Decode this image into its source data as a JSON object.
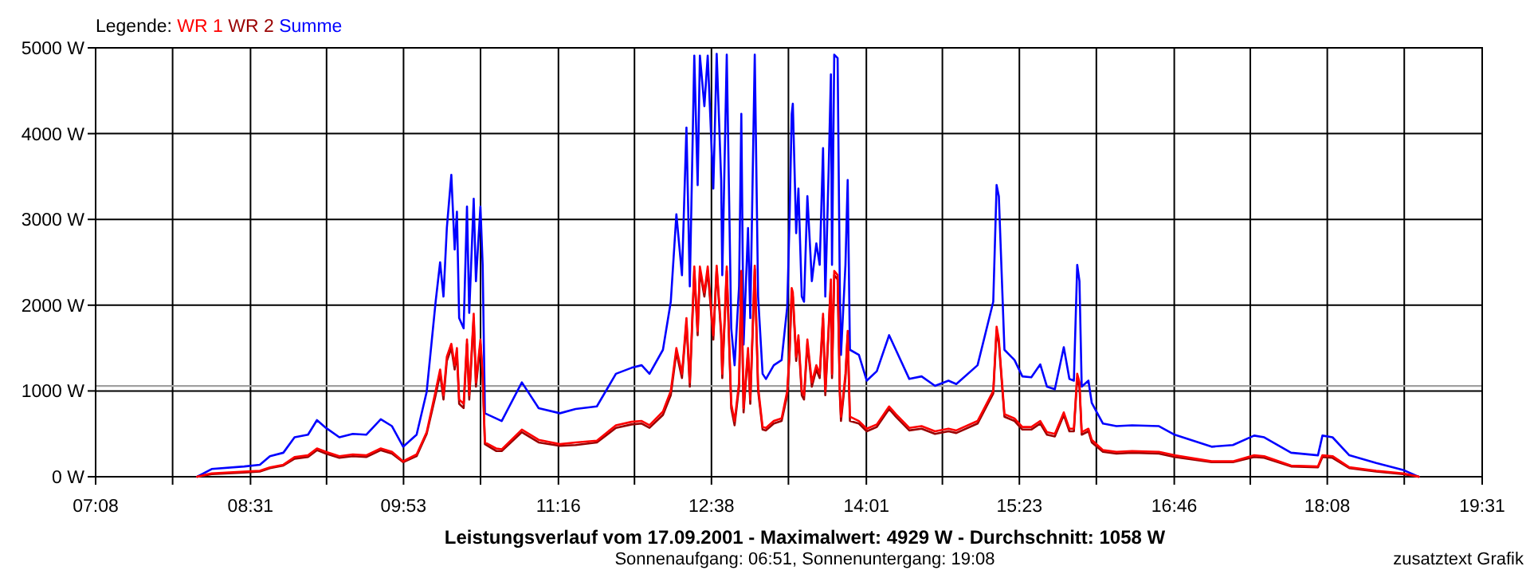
{
  "chart_data": {
    "type": "line",
    "title": "Leistungsverlauf vom 17.09.2001 - Maximalwert: 4929 W - Durchschnitt: 1058 W",
    "subtitle": "Sonnenaufgang: 06:51, Sonnenuntergang: 19:08",
    "annotations": [
      "zusatztext Grafik"
    ],
    "legend_title": "Legende:",
    "legend": "top left",
    "grid": true,
    "marker": "none",
    "line_style": "solid",
    "xlim": [
      7.1333,
      19.5167
    ],
    "xticks": [
      {
        "value": 7.1333,
        "label": "07:08"
      },
      {
        "value": 7.8208,
        "label": null
      },
      {
        "value": 8.5167,
        "label": "08:31"
      },
      {
        "value": 9.1958,
        "label": null
      },
      {
        "value": 9.8833,
        "label": "09:53"
      },
      {
        "value": 10.5708,
        "label": null
      },
      {
        "value": 11.2667,
        "label": "11:16"
      },
      {
        "value": 11.9458,
        "label": null
      },
      {
        "value": 12.6333,
        "label": "12:38"
      },
      {
        "value": 13.3208,
        "label": null
      },
      {
        "value": 14.0167,
        "label": "14:01"
      },
      {
        "value": 14.6958,
        "label": null
      },
      {
        "value": 15.3833,
        "label": "15:23"
      },
      {
        "value": 16.0708,
        "label": null
      },
      {
        "value": 16.7667,
        "label": "16:46"
      },
      {
        "value": 17.4458,
        "label": null
      },
      {
        "value": 18.1333,
        "label": "18:08"
      },
      {
        "value": 18.8208,
        "label": null
      },
      {
        "value": 19.5167,
        "label": "19:31"
      }
    ],
    "ylim": [
      0,
      5000
    ],
    "yticks": [
      {
        "value": 0,
        "label": "0 W"
      },
      {
        "value": 1000,
        "label": "1000 W"
      },
      {
        "value": 2000,
        "label": "2000 W"
      },
      {
        "value": 3000,
        "label": "3000 W"
      },
      {
        "value": 4000,
        "label": "4000 W"
      },
      {
        "value": 5000,
        "label": "5000 W"
      }
    ],
    "ref_lines": [
      {
        "axis": "y",
        "value": 1058,
        "color": "#a0a0a0"
      }
    ],
    "x": [
      8.04,
      8.17,
      8.46,
      8.6,
      8.69,
      8.81,
      8.91,
      9.03,
      9.11,
      9.19,
      9.31,
      9.43,
      9.55,
      9.68,
      9.78,
      9.88,
      10.0,
      10.09,
      10.17,
      10.21,
      10.24,
      10.27,
      10.31,
      10.34,
      10.36,
      10.38,
      10.42,
      10.45,
      10.47,
      10.51,
      10.53,
      10.57,
      10.59,
      10.61,
      10.71,
      10.76,
      10.94,
      11.09,
      11.28,
      11.42,
      11.61,
      11.78,
      11.92,
      12.01,
      12.08,
      12.2,
      12.27,
      12.32,
      12.37,
      12.41,
      12.44,
      12.48,
      12.51,
      12.53,
      12.57,
      12.6,
      12.65,
      12.68,
      12.72,
      12.73,
      12.77,
      12.81,
      12.84,
      12.88,
      12.9,
      12.92,
      12.96,
      12.98,
      13.02,
      13.05,
      13.09,
      13.12,
      13.19,
      13.26,
      13.31,
      13.33,
      13.35,
      13.36,
      13.39,
      13.41,
      13.44,
      13.46,
      13.49,
      13.53,
      13.57,
      13.6,
      13.63,
      13.65,
      13.68,
      13.7,
      13.71,
      13.73,
      13.76,
      13.78,
      13.79,
      13.83,
      13.85,
      13.87,
      13.95,
      14.02,
      14.11,
      14.22,
      14.28,
      14.4,
      14.51,
      14.63,
      14.75,
      14.82,
      15.01,
      15.15,
      15.18,
      15.2,
      15.25,
      15.34,
      15.41,
      15.49,
      15.57,
      15.63,
      15.7,
      15.78,
      15.83,
      15.87,
      15.9,
      15.92,
      15.94,
      16.0,
      16.03,
      16.13,
      16.25,
      16.39,
      16.63,
      16.77,
      17.1,
      17.29,
      17.48,
      17.57,
      17.81,
      18.05,
      18.09,
      18.18,
      18.33,
      18.57,
      18.81,
      18.95
    ],
    "series": [
      {
        "name": "WR 1",
        "color": "#ff0000",
        "values": [
          0,
          40,
          60,
          70,
          110,
          140,
          230,
          250,
          330,
          290,
          240,
          260,
          250,
          330,
          290,
          180,
          260,
          520,
          1000,
          1250,
          950,
          1400,
          1550,
          1300,
          1500,
          900,
          850,
          1600,
          950,
          1900,
          1100,
          1600,
          1200,
          400,
          330,
          320,
          550,
          430,
          380,
          400,
          420,
          600,
          640,
          650,
          600,
          760,
          1000,
          1500,
          1200,
          1850,
          1100,
          2450,
          1700,
          2450,
          2150,
          2450,
          1650,
          2460,
          1700,
          1200,
          2450,
          850,
          650,
          1100,
          2400,
          800,
          1500,
          900,
          2460,
          1050,
          580,
          570,
          650,
          680,
          1000,
          1450,
          2200,
          2150,
          1400,
          1650,
          1000,
          950,
          1600,
          1100,
          1300,
          1200,
          1900,
          1000,
          1750,
          2300,
          1200,
          2400,
          2350,
          1000,
          700,
          1200,
          1700,
          700,
          650,
          560,
          610,
          820,
          730,
          570,
          590,
          530,
          560,
          540,
          650,
          1000,
          1750,
          1600,
          730,
          680,
          580,
          580,
          650,
          520,
          500,
          750,
          560,
          560,
          1200,
          1100,
          520,
          560,
          430,
          310,
          290,
          300,
          290,
          250,
          180,
          180,
          250,
          240,
          130,
          120,
          250,
          240,
          110,
          70,
          40,
          0
        ]
      },
      {
        "name": "WR 2",
        "color": "#990000",
        "values": [
          0,
          30,
          50,
          60,
          100,
          130,
          210,
          230,
          310,
          270,
          220,
          240,
          230,
          310,
          270,
          170,
          240,
          500,
          950,
          1200,
          900,
          1350,
          1500,
          1250,
          1450,
          850,
          800,
          1550,
          900,
          1850,
          1050,
          1550,
          1150,
          380,
          300,
          300,
          520,
          400,
          360,
          370,
          400,
          570,
          610,
          620,
          570,
          720,
          950,
          1450,
          1150,
          1800,
          1050,
          2400,
          1650,
          2400,
          2100,
          2400,
          1600,
          2420,
          1650,
          1150,
          2400,
          800,
          600,
          1050,
          2350,
          750,
          1450,
          850,
          2420,
          1000,
          550,
          540,
          620,
          650,
          950,
          1400,
          2150,
          2100,
          1350,
          1600,
          950,
          900,
          1550,
          1050,
          1250,
          1150,
          1850,
          950,
          1700,
          2250,
          1150,
          2350,
          2300,
          950,
          650,
          1150,
          1650,
          650,
          620,
          530,
          580,
          790,
          700,
          540,
          560,
          500,
          530,
          510,
          620,
          970,
          1700,
          1550,
          700,
          650,
          550,
          550,
          620,
          490,
          470,
          720,
          530,
          530,
          1150,
          1050,
          490,
          530,
          400,
          290,
          270,
          280,
          270,
          230,
          170,
          170,
          230,
          220,
          120,
          110,
          230,
          220,
          100,
          60,
          30,
          0
        ]
      },
      {
        "name": "Summe",
        "color": "#0000ff",
        "values": [
          0,
          90,
          120,
          140,
          240,
          280,
          460,
          490,
          660,
          570,
          460,
          500,
          490,
          670,
          590,
          350,
          490,
          990,
          2040,
          2500,
          2100,
          2900,
          3520,
          2650,
          3090,
          1850,
          1730,
          3150,
          1910,
          3240,
          2280,
          3150,
          2470,
          740,
          680,
          650,
          1100,
          800,
          740,
          790,
          820,
          1200,
          1270,
          1300,
          1200,
          1480,
          2040,
          3060,
          2350,
          4070,
          2220,
          4910,
          3400,
          4910,
          4320,
          4910,
          3360,
          4929,
          3460,
          2350,
          4920,
          1730,
          1300,
          2220,
          4230,
          1540,
          2900,
          1850,
          4920,
          2100,
          1200,
          1140,
          1300,
          1360,
          1980,
          2960,
          4230,
          4350,
          2840,
          3360,
          2100,
          2040,
          3270,
          2280,
          2720,
          2470,
          3830,
          2100,
          3580,
          4690,
          2470,
          4920,
          4880,
          2160,
          1420,
          2470,
          3460,
          1480,
          1420,
          1120,
          1230,
          1650,
          1480,
          1140,
          1170,
          1060,
          1120,
          1080,
          1300,
          2040,
          3400,
          3270,
          1480,
          1360,
          1170,
          1160,
          1310,
          1050,
          1020,
          1510,
          1140,
          1120,
          2470,
          2280,
          1050,
          1120,
          860,
          620,
          590,
          600,
          590,
          490,
          350,
          370,
          480,
          460,
          280,
          250,
          480,
          460,
          250,
          160,
          80,
          0
        ]
      }
    ]
  }
}
